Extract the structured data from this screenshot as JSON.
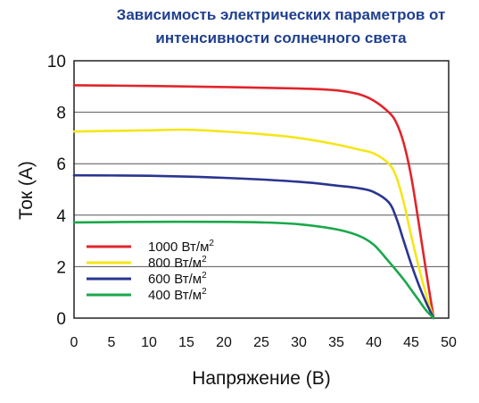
{
  "chart_data": {
    "type": "line",
    "title_lines": [
      "Зависимость электрических параметров от",
      "интенсивности солнечного света"
    ],
    "xlabel": "Напряжение (В)",
    "ylabel": "Ток (А)",
    "xlim": [
      0,
      50
    ],
    "ylim": [
      0,
      10
    ],
    "xticks": [
      0,
      5,
      10,
      15,
      20,
      25,
      30,
      35,
      40,
      45,
      50
    ],
    "yticks": [
      0,
      2,
      4,
      6,
      8,
      10
    ],
    "grid": "horizontal",
    "legend_position": "bottom-left",
    "series": [
      {
        "name": "1000 Вт/м²",
        "legend_value": "1000 Вт/м",
        "legend_sup": "2",
        "color": "#e0252b",
        "points": [
          [
            0,
            9.05
          ],
          [
            10,
            9.02
          ],
          [
            20,
            8.98
          ],
          [
            30,
            8.92
          ],
          [
            35,
            8.85
          ],
          [
            38,
            8.7
          ],
          [
            40,
            8.45
          ],
          [
            42,
            8.0
          ],
          [
            43,
            7.6
          ],
          [
            44,
            6.8
          ],
          [
            45,
            5.5
          ],
          [
            46,
            3.7
          ],
          [
            47,
            1.8
          ],
          [
            48,
            0
          ]
        ]
      },
      {
        "name": "800 Вт/м²",
        "legend_value": "800 Вт/м",
        "legend_sup": "2",
        "color": "#f5e61a",
        "points": [
          [
            0,
            7.25
          ],
          [
            10,
            7.3
          ],
          [
            15,
            7.32
          ],
          [
            20,
            7.25
          ],
          [
            25,
            7.15
          ],
          [
            30,
            7.0
          ],
          [
            35,
            6.75
          ],
          [
            38,
            6.55
          ],
          [
            40,
            6.4
          ],
          [
            42,
            6.0
          ],
          [
            43,
            5.5
          ],
          [
            44,
            4.5
          ],
          [
            45,
            3.2
          ],
          [
            46,
            2.0
          ],
          [
            47,
            0.9
          ],
          [
            48,
            0
          ]
        ]
      },
      {
        "name": "600 Вт/м²",
        "legend_value": "600 Вт/м",
        "legend_sup": "2",
        "color": "#2a3590",
        "points": [
          [
            0,
            5.55
          ],
          [
            10,
            5.53
          ],
          [
            20,
            5.45
          ],
          [
            30,
            5.3
          ],
          [
            35,
            5.15
          ],
          [
            38,
            5.05
          ],
          [
            40,
            4.9
          ],
          [
            42,
            4.5
          ],
          [
            43,
            3.9
          ],
          [
            44,
            3.0
          ],
          [
            45,
            2.1
          ],
          [
            46,
            1.3
          ],
          [
            47,
            0.6
          ],
          [
            48,
            0
          ]
        ]
      },
      {
        "name": "400 Вт/м²",
        "legend_value": "400 Вт/м",
        "legend_sup": "2",
        "color": "#1aa84a",
        "points": [
          [
            0,
            3.72
          ],
          [
            10,
            3.74
          ],
          [
            20,
            3.74
          ],
          [
            25,
            3.72
          ],
          [
            30,
            3.65
          ],
          [
            35,
            3.45
          ],
          [
            38,
            3.2
          ],
          [
            40,
            2.85
          ],
          [
            42,
            2.2
          ],
          [
            44,
            1.5
          ],
          [
            45,
            1.1
          ],
          [
            46,
            0.7
          ],
          [
            47,
            0.3
          ],
          [
            48,
            0
          ]
        ]
      }
    ]
  }
}
